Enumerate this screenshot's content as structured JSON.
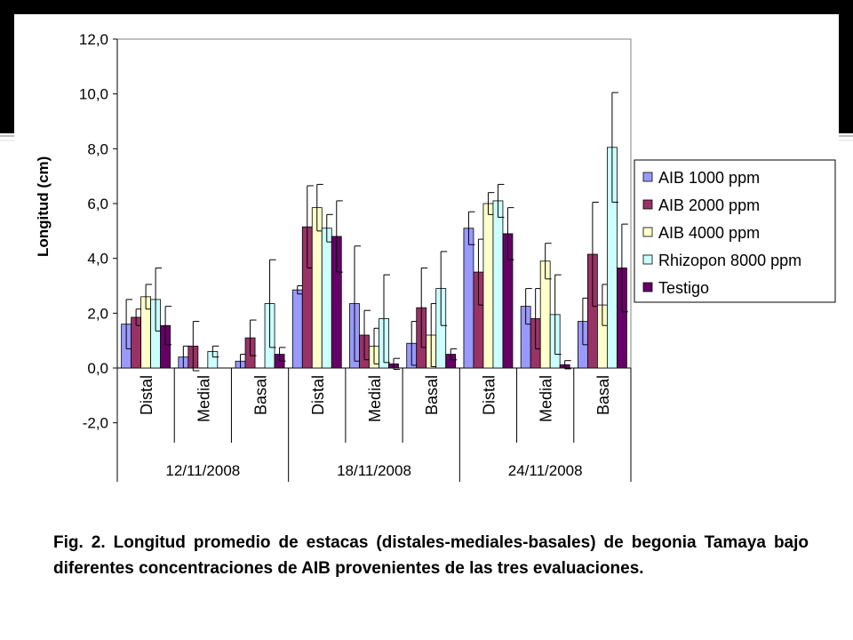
{
  "colors": {
    "AIB 1000 ppm": "#9999ff",
    "AIB 2000 ppm": "#993366",
    "AIB 4000 ppm": "#ffffcc",
    "Rhizopon 8000 ppm": "#ccffff",
    "Testigo": "#660066"
  },
  "chart_data": {
    "type": "bar",
    "ylabel": "Longitud (cm)",
    "ylim": [
      -2.0,
      12.0
    ],
    "yticks": [
      "12,0",
      "10,0",
      "8,0",
      "6,0",
      "4,0",
      "2,0",
      "0,0",
      "-2,0"
    ],
    "legend_position": "right",
    "dates": [
      "12/11/2008",
      "18/11/2008",
      "24/11/2008"
    ],
    "positions": [
      "Distal",
      "Medial",
      "Basal"
    ],
    "categories": [
      "Distal",
      "Medial",
      "Basal",
      "Distal",
      "Medial",
      "Basal",
      "Distal",
      "Medial",
      "Basal"
    ],
    "series": [
      {
        "name": "AIB 1000 ppm",
        "values": [
          1.6,
          0.4,
          0.25,
          2.85,
          2.35,
          0.9,
          5.1,
          2.25,
          1.7
        ],
        "error": [
          0.9,
          0.4,
          0.25,
          0.15,
          2.1,
          0.8,
          0.6,
          0.65,
          0.85
        ]
      },
      {
        "name": "AIB 2000 ppm",
        "values": [
          1.85,
          0.8,
          1.1,
          5.15,
          1.2,
          2.2,
          3.5,
          1.8,
          4.15
        ],
        "error": [
          0.3,
          0.9,
          0.65,
          1.5,
          0.9,
          1.45,
          1.2,
          1.1,
          1.9
        ]
      },
      {
        "name": "AIB 4000 ppm",
        "values": [
          2.6,
          0,
          0,
          5.85,
          0.8,
          1.2,
          6.0,
          3.9,
          2.3
        ],
        "error": [
          0.45,
          0,
          0,
          0.85,
          0.65,
          1.15,
          0.4,
          0.65,
          0.75
        ]
      },
      {
        "name": "Rhizopon 8000 ppm",
        "values": [
          2.5,
          0.6,
          2.35,
          5.1,
          1.8,
          2.9,
          6.1,
          1.95,
          8.05
        ],
        "error": [
          1.15,
          0.2,
          1.6,
          0.5,
          1.6,
          1.35,
          0.6,
          1.45,
          2.0
        ]
      },
      {
        "name": "Testigo",
        "values": [
          1.55,
          0,
          0.5,
          4.8,
          0.15,
          0.5,
          4.9,
          0.12,
          3.65
        ],
        "error": [
          0.7,
          0,
          0.25,
          1.3,
          0.2,
          0.2,
          0.95,
          0.15,
          1.6
        ]
      }
    ]
  },
  "caption": "Fig. 2. Longitud promedio de estacas (distales-mediales-basales) de begonia Tamaya bajo diferentes concentraciones de AIB provenientes de las tres evaluaciones."
}
